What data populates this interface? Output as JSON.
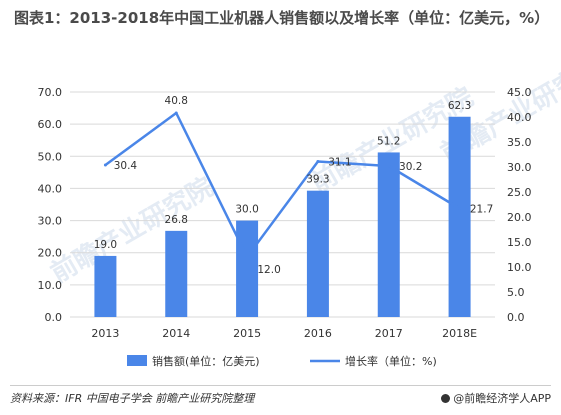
{
  "title": "图表1：2013-2018年中国工业机器人销售额以及增长率（单位：亿美元，%）",
  "source": "资料来源：IFR 中国电子学会 前瞻产业研究院整理",
  "brand": "@前瞻经济学人APP",
  "watermark": "前瞻产业研究院",
  "colors": {
    "bar": "#4a86e8",
    "line": "#4a86e8",
    "grid": "#d9d9d9"
  },
  "chart_data": {
    "type": "bar+line",
    "categories": [
      "2013",
      "2014",
      "2015",
      "2016",
      "2017",
      "2018E"
    ],
    "series": [
      {
        "name": "销售额(单位：亿美元)",
        "type": "bar",
        "axis": "left",
        "values": [
          19.0,
          26.8,
          30.0,
          39.3,
          51.2,
          62.3
        ]
      },
      {
        "name": "增长率（单位：%)",
        "type": "line",
        "axis": "right",
        "values": [
          30.4,
          40.8,
          12.0,
          31.1,
          30.2,
          21.7
        ]
      }
    ],
    "y_left": {
      "min": 0,
      "max": 70,
      "step": 10,
      "ticks": [
        "0.0",
        "10.0",
        "20.0",
        "30.0",
        "40.0",
        "50.0",
        "60.0",
        "70.0"
      ]
    },
    "y_right": {
      "min": 0,
      "max": 45,
      "step": 5,
      "ticks": [
        "0.0",
        "5.0",
        "10.0",
        "15.0",
        "20.0",
        "25.0",
        "30.0",
        "35.0",
        "40.0",
        "45.0"
      ]
    },
    "bar_labels": [
      "19.0",
      "26.8",
      "30.0",
      "39.3",
      "51.2",
      "62.3"
    ],
    "line_labels": [
      "30.4",
      "40.8",
      "12.0",
      "31.1",
      "30.2",
      "21.7"
    ],
    "grid": true,
    "legend_position": "bottom"
  }
}
